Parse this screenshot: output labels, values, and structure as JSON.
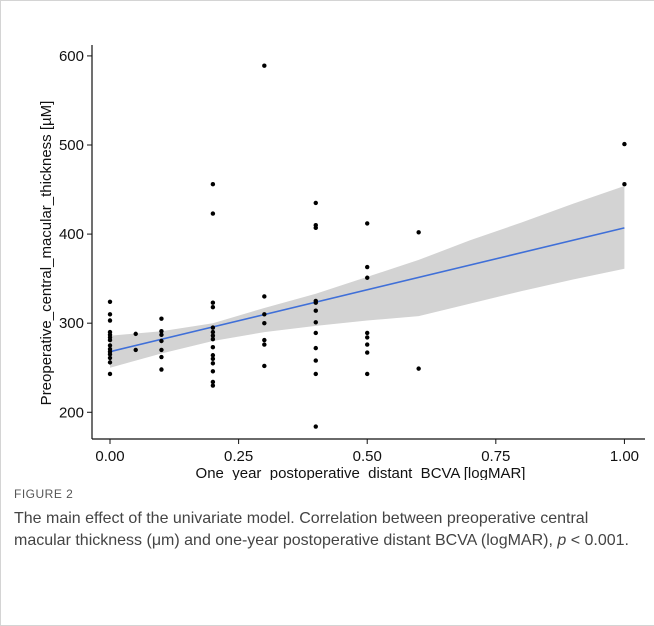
{
  "chart_data": {
    "type": "scatter",
    "xlabel": "One_year_postoperative_distant_BCVA [logMAR]",
    "ylabel": "Preoperative_central_macular_thickness [µM]",
    "xlim": [
      -0.035,
      1.04
    ],
    "ylim": [
      170,
      610
    ],
    "xticks": [
      0.0,
      0.25,
      0.5,
      0.75,
      1.0
    ],
    "xtick_labels": [
      "0.00",
      "0.25",
      "0.50",
      "0.75",
      "1.00"
    ],
    "yticks": [
      200,
      300,
      400,
      500,
      600
    ],
    "ytick_labels": [
      "200",
      "300",
      "400",
      "500",
      "600"
    ],
    "grid": false,
    "points": [
      {
        "x": 0.0,
        "y": 324
      },
      {
        "x": 0.0,
        "y": 310
      },
      {
        "x": 0.0,
        "y": 303
      },
      {
        "x": 0.0,
        "y": 290
      },
      {
        "x": 0.0,
        "y": 287
      },
      {
        "x": 0.0,
        "y": 284
      },
      {
        "x": 0.0,
        "y": 281
      },
      {
        "x": 0.0,
        "y": 275
      },
      {
        "x": 0.0,
        "y": 271
      },
      {
        "x": 0.0,
        "y": 268
      },
      {
        "x": 0.0,
        "y": 265
      },
      {
        "x": 0.0,
        "y": 261
      },
      {
        "x": 0.0,
        "y": 256
      },
      {
        "x": 0.0,
        "y": 243
      },
      {
        "x": 0.05,
        "y": 288
      },
      {
        "x": 0.05,
        "y": 270
      },
      {
        "x": 0.1,
        "y": 305
      },
      {
        "x": 0.1,
        "y": 291
      },
      {
        "x": 0.1,
        "y": 287
      },
      {
        "x": 0.1,
        "y": 280
      },
      {
        "x": 0.1,
        "y": 270
      },
      {
        "x": 0.1,
        "y": 262
      },
      {
        "x": 0.1,
        "y": 248
      },
      {
        "x": 0.2,
        "y": 456
      },
      {
        "x": 0.2,
        "y": 423
      },
      {
        "x": 0.2,
        "y": 323
      },
      {
        "x": 0.2,
        "y": 318
      },
      {
        "x": 0.2,
        "y": 295
      },
      {
        "x": 0.2,
        "y": 290
      },
      {
        "x": 0.2,
        "y": 286
      },
      {
        "x": 0.2,
        "y": 282
      },
      {
        "x": 0.2,
        "y": 273
      },
      {
        "x": 0.2,
        "y": 264
      },
      {
        "x": 0.2,
        "y": 260
      },
      {
        "x": 0.2,
        "y": 255
      },
      {
        "x": 0.2,
        "y": 246
      },
      {
        "x": 0.2,
        "y": 234
      },
      {
        "x": 0.2,
        "y": 230
      },
      {
        "x": 0.3,
        "y": 589
      },
      {
        "x": 0.3,
        "y": 330
      },
      {
        "x": 0.3,
        "y": 310
      },
      {
        "x": 0.3,
        "y": 300
      },
      {
        "x": 0.3,
        "y": 281
      },
      {
        "x": 0.3,
        "y": 276
      },
      {
        "x": 0.3,
        "y": 252
      },
      {
        "x": 0.4,
        "y": 435
      },
      {
        "x": 0.4,
        "y": 410
      },
      {
        "x": 0.4,
        "y": 407
      },
      {
        "x": 0.4,
        "y": 325
      },
      {
        "x": 0.4,
        "y": 323
      },
      {
        "x": 0.4,
        "y": 314
      },
      {
        "x": 0.4,
        "y": 301
      },
      {
        "x": 0.4,
        "y": 289
      },
      {
        "x": 0.4,
        "y": 272
      },
      {
        "x": 0.4,
        "y": 258
      },
      {
        "x": 0.4,
        "y": 243
      },
      {
        "x": 0.4,
        "y": 184
      },
      {
        "x": 0.5,
        "y": 412
      },
      {
        "x": 0.5,
        "y": 363
      },
      {
        "x": 0.5,
        "y": 351
      },
      {
        "x": 0.5,
        "y": 289
      },
      {
        "x": 0.5,
        "y": 284
      },
      {
        "x": 0.5,
        "y": 276
      },
      {
        "x": 0.5,
        "y": 267
      },
      {
        "x": 0.5,
        "y": 243
      },
      {
        "x": 0.6,
        "y": 402
      },
      {
        "x": 0.6,
        "y": 249
      },
      {
        "x": 1.0,
        "y": 501
      },
      {
        "x": 1.0,
        "y": 456
      }
    ],
    "fit_line": {
      "x": [
        0.0,
        1.0
      ],
      "y": [
        268,
        407
      ]
    },
    "confidence_band": {
      "x": [
        0.0,
        0.1,
        0.2,
        0.3,
        0.4,
        0.5,
        0.6,
        0.7,
        0.8,
        0.9,
        1.0
      ],
      "lower": [
        250,
        266,
        280,
        290,
        297,
        303,
        308,
        322,
        336,
        349,
        361
      ],
      "upper": [
        286,
        291,
        300,
        317,
        333,
        352,
        371,
        393,
        413,
        434,
        454
      ]
    },
    "colors": {
      "points": "#000000",
      "fit_line": "#3f6fd8",
      "band": "#d3d3d3",
      "axis": "#111111"
    }
  },
  "caption": {
    "label": "FIGURE 2",
    "text_main": "The main effect of the univariate model. Correlation between preoperative central macular thickness (μm) and one-year postoperative distant BCVA (logMAR), ",
    "p_symbol": "p",
    "text_end": " < 0.001."
  }
}
